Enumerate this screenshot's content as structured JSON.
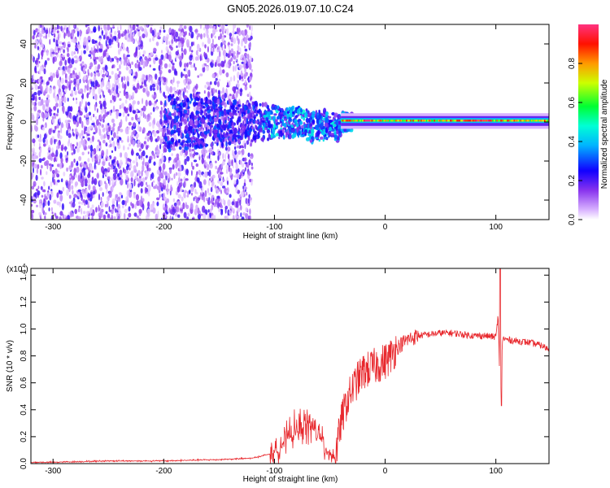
{
  "title": "GN05.2026.019.07.10.C24",
  "colors": {
    "snr_line": "#e8282d",
    "axis": "#000000",
    "cmap_stops": [
      "#ffffff",
      "#cc99ff",
      "#6600cc",
      "#0000ff",
      "#00ccff",
      "#00ff55",
      "#ccff00",
      "#ff8800",
      "#ff0000",
      "#ff3399"
    ]
  },
  "chart_data": [
    {
      "type": "heatmap",
      "title": "GN05.2026.019.07.10.C24",
      "xlabel": "Height of straight line (km)",
      "ylabel": "Frequency (Hz)",
      "xlim": [
        -320,
        148
      ],
      "ylim": [
        -50,
        50
      ],
      "xticks": [
        -300,
        -200,
        -100,
        0,
        100
      ],
      "xtick_labels": [
        "-300",
        "-200",
        "-100",
        "0",
        "100"
      ],
      "yticks": [
        -40,
        -20,
        0,
        20,
        40
      ],
      "ytick_labels": [
        "-40",
        "-20",
        "0",
        "20",
        "40"
      ],
      "colorbar": {
        "label": "Normalized spectral amplitude",
        "range": [
          0,
          1
        ],
        "ticks": [
          0.0,
          0.2,
          0.4,
          0.6,
          0.8
        ],
        "tick_labels": [
          "0.0",
          "0.2",
          "0.4",
          "0.6",
          "0.8"
        ]
      },
      "band_summary": [
        {
          "x_range": [
            -320,
            -120
          ],
          "description": "diffuse noise, purple",
          "amplitude": 0.15
        },
        {
          "x_range": [
            -120,
            -40
          ],
          "description": "narrowing band near 0 Hz, blue/cyan",
          "amplitude": 0.35
        },
        {
          "x_range": [
            -40,
            148
          ],
          "description": "narrow band near 1 Hz, green/red",
          "amplitude": 0.7
        }
      ]
    },
    {
      "type": "line",
      "xlabel": "Height of straight line (km)",
      "ylabel": "SNR (10 * v/v)",
      "multiplier": "(x10",
      "multiplier_exp": "4",
      "xlim": [
        -320,
        148
      ],
      "ylim": [
        0,
        1.45
      ],
      "xticks": [
        -300,
        -200,
        -100,
        0,
        100
      ],
      "xtick_labels": [
        "-300",
        "-200",
        "-100",
        "0",
        "100"
      ],
      "yticks": [
        0.0,
        0.2,
        0.4,
        0.6,
        0.8,
        1.0,
        1.2,
        1.4
      ],
      "ytick_labels": [
        "0.0",
        "0.2",
        "0.4",
        "0.6",
        "0.8",
        "1.0",
        "1.2",
        "1.4"
      ],
      "series": [
        {
          "name": "SNR",
          "x": [
            -320,
            -300,
            -250,
            -200,
            -150,
            -120,
            -100,
            -90,
            -80,
            -70,
            -60,
            -55,
            -50,
            -45,
            -40,
            -35,
            -30,
            -25,
            -20,
            -15,
            -10,
            -5,
            0,
            5,
            10,
            20,
            30,
            40,
            50,
            60,
            70,
            80,
            90,
            100,
            102,
            104,
            106,
            110,
            120,
            130,
            140,
            148
          ],
          "values": [
            0.01,
            0.01,
            0.02,
            0.02,
            0.03,
            0.04,
            0.08,
            0.18,
            0.25,
            0.3,
            0.22,
            0.12,
            0.08,
            0.05,
            0.3,
            0.45,
            0.55,
            0.62,
            0.68,
            0.7,
            0.72,
            0.74,
            0.76,
            0.8,
            0.86,
            0.92,
            0.95,
            0.96,
            0.97,
            0.97,
            0.96,
            0.95,
            0.95,
            0.94,
            1.1,
            0.45,
            0.93,
            0.92,
            0.91,
            0.9,
            0.88,
            0.85
          ]
        }
      ]
    }
  ]
}
